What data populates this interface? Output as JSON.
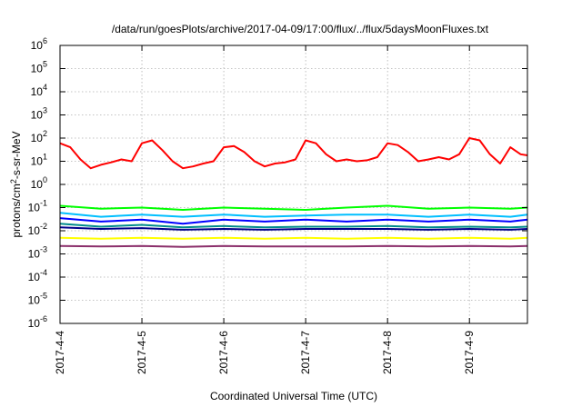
{
  "chart_data": {
    "type": "line",
    "title": "/data/run/goesPlots/archive/2017-04-09/17:00/flux/../flux/5daysMoonFluxes.txt",
    "xlabel": "Coordinated Universal Time (UTC)",
    "ylabel": "protons/cm2-s-sr-MeV",
    "ylabel_main": "protons/cm",
    "ylabel_sup": "2",
    "ylabel_rest": "-s-sr-MeV",
    "yscale": "log",
    "ylim_exp": [
      -6,
      6
    ],
    "yticks": [
      {
        "base": "10",
        "exp": "-6"
      },
      {
        "base": "10",
        "exp": "-5"
      },
      {
        "base": "10",
        "exp": "-4"
      },
      {
        "base": "10",
        "exp": "-3"
      },
      {
        "base": "10",
        "exp": "-2"
      },
      {
        "base": "10",
        "exp": "-1"
      },
      {
        "base": "10",
        "exp": "0"
      },
      {
        "base": "10",
        "exp": "1"
      },
      {
        "base": "10",
        "exp": "2"
      },
      {
        "base": "10",
        "exp": "3"
      },
      {
        "base": "10",
        "exp": "4"
      },
      {
        "base": "10",
        "exp": "5"
      },
      {
        "base": "10",
        "exp": "6"
      }
    ],
    "xlim": [
      "2017-04-04T00:00",
      "2017-04-09T17:00"
    ],
    "xticks": [
      {
        "label": "2017-4-4",
        "date": "2017-04-04T00:00"
      },
      {
        "label": "2017-4-5",
        "date": "2017-04-05T00:00"
      },
      {
        "label": "2017-4-6",
        "date": "2017-04-06T00:00"
      },
      {
        "label": "2017-4-7",
        "date": "2017-04-07T00:00"
      },
      {
        "label": "2017-4-8",
        "date": "2017-04-08T00:00"
      },
      {
        "label": "2017-4-9",
        "date": "2017-04-09T00:00"
      }
    ],
    "grid": true,
    "legend": "none",
    "series": [
      {
        "color": "#ff0000",
        "points": [
          [
            "2017-04-04T00:00",
            60
          ],
          [
            "2017-04-04T03:00",
            40
          ],
          [
            "2017-04-04T06:00",
            12
          ],
          [
            "2017-04-04T09:00",
            5
          ],
          [
            "2017-04-04T12:00",
            7
          ],
          [
            "2017-04-04T15:00",
            9
          ],
          [
            "2017-04-04T18:00",
            12
          ],
          [
            "2017-04-04T21:00",
            10
          ],
          [
            "2017-04-05T00:00",
            60
          ],
          [
            "2017-04-05T03:00",
            80
          ],
          [
            "2017-04-05T06:00",
            30
          ],
          [
            "2017-04-05T09:00",
            10
          ],
          [
            "2017-04-05T12:00",
            5
          ],
          [
            "2017-04-05T15:00",
            6
          ],
          [
            "2017-04-05T18:00",
            8
          ],
          [
            "2017-04-05T21:00",
            10
          ],
          [
            "2017-04-06T00:00",
            40
          ],
          [
            "2017-04-06T03:00",
            45
          ],
          [
            "2017-04-06T06:00",
            25
          ],
          [
            "2017-04-06T09:00",
            10
          ],
          [
            "2017-04-06T12:00",
            6
          ],
          [
            "2017-04-06T15:00",
            8
          ],
          [
            "2017-04-06T18:00",
            9
          ],
          [
            "2017-04-06T21:00",
            12
          ],
          [
            "2017-04-07T00:00",
            80
          ],
          [
            "2017-04-07T03:00",
            60
          ],
          [
            "2017-04-07T06:00",
            20
          ],
          [
            "2017-04-07T09:00",
            10
          ],
          [
            "2017-04-07T12:00",
            12
          ],
          [
            "2017-04-07T15:00",
            10
          ],
          [
            "2017-04-07T18:00",
            11
          ],
          [
            "2017-04-07T21:00",
            15
          ],
          [
            "2017-04-08T00:00",
            60
          ],
          [
            "2017-04-08T03:00",
            50
          ],
          [
            "2017-04-08T06:00",
            25
          ],
          [
            "2017-04-08T09:00",
            10
          ],
          [
            "2017-04-08T12:00",
            12
          ],
          [
            "2017-04-08T15:00",
            15
          ],
          [
            "2017-04-08T18:00",
            12
          ],
          [
            "2017-04-08T21:00",
            20
          ],
          [
            "2017-04-09T00:00",
            100
          ],
          [
            "2017-04-09T03:00",
            80
          ],
          [
            "2017-04-09T06:00",
            20
          ],
          [
            "2017-04-09T09:00",
            8
          ],
          [
            "2017-04-09T12:00",
            40
          ],
          [
            "2017-04-09T15:00",
            20
          ],
          [
            "2017-04-09T17:00",
            18
          ]
        ]
      },
      {
        "color": "#00ff00",
        "points": [
          [
            "2017-04-04T00:00",
            0.12
          ],
          [
            "2017-04-04T12:00",
            0.09
          ],
          [
            "2017-04-05T00:00",
            0.1
          ],
          [
            "2017-04-05T12:00",
            0.08
          ],
          [
            "2017-04-06T00:00",
            0.1
          ],
          [
            "2017-04-06T12:00",
            0.09
          ],
          [
            "2017-04-07T00:00",
            0.08
          ],
          [
            "2017-04-07T12:00",
            0.1
          ],
          [
            "2017-04-08T00:00",
            0.12
          ],
          [
            "2017-04-08T12:00",
            0.09
          ],
          [
            "2017-04-09T00:00",
            0.1
          ],
          [
            "2017-04-09T12:00",
            0.09
          ],
          [
            "2017-04-09T17:00",
            0.1
          ]
        ]
      },
      {
        "color": "#00bfff",
        "points": [
          [
            "2017-04-04T00:00",
            0.06
          ],
          [
            "2017-04-04T12:00",
            0.04
          ],
          [
            "2017-04-05T00:00",
            0.05
          ],
          [
            "2017-04-05T12:00",
            0.04
          ],
          [
            "2017-04-06T00:00",
            0.05
          ],
          [
            "2017-04-06T12:00",
            0.04
          ],
          [
            "2017-04-07T00:00",
            0.045
          ],
          [
            "2017-04-07T12:00",
            0.05
          ],
          [
            "2017-04-08T00:00",
            0.05
          ],
          [
            "2017-04-08T12:00",
            0.04
          ],
          [
            "2017-04-09T00:00",
            0.05
          ],
          [
            "2017-04-09T12:00",
            0.04
          ],
          [
            "2017-04-09T17:00",
            0.05
          ]
        ]
      },
      {
        "color": "#0000ff",
        "points": [
          [
            "2017-04-04T00:00",
            0.035
          ],
          [
            "2017-04-04T12:00",
            0.025
          ],
          [
            "2017-04-05T00:00",
            0.03
          ],
          [
            "2017-04-05T12:00",
            0.02
          ],
          [
            "2017-04-06T00:00",
            0.03
          ],
          [
            "2017-04-06T12:00",
            0.025
          ],
          [
            "2017-04-07T00:00",
            0.03
          ],
          [
            "2017-04-07T12:00",
            0.025
          ],
          [
            "2017-04-08T00:00",
            0.03
          ],
          [
            "2017-04-08T12:00",
            0.025
          ],
          [
            "2017-04-09T00:00",
            0.03
          ],
          [
            "2017-04-09T12:00",
            0.025
          ],
          [
            "2017-04-09T17:00",
            0.03
          ]
        ]
      },
      {
        "color": "#008b8b",
        "points": [
          [
            "2017-04-04T00:00",
            0.02
          ],
          [
            "2017-04-04T12:00",
            0.015
          ],
          [
            "2017-04-05T00:00",
            0.018
          ],
          [
            "2017-04-05T12:00",
            0.014
          ],
          [
            "2017-04-06T00:00",
            0.016
          ],
          [
            "2017-04-06T12:00",
            0.014
          ],
          [
            "2017-04-07T00:00",
            0.015
          ],
          [
            "2017-04-07T12:00",
            0.015
          ],
          [
            "2017-04-08T00:00",
            0.016
          ],
          [
            "2017-04-08T12:00",
            0.014
          ],
          [
            "2017-04-09T00:00",
            0.015
          ],
          [
            "2017-04-09T12:00",
            0.014
          ],
          [
            "2017-04-09T17:00",
            0.015
          ]
        ]
      },
      {
        "color": "#00008b",
        "points": [
          [
            "2017-04-04T00:00",
            0.014
          ],
          [
            "2017-04-04T12:00",
            0.012
          ],
          [
            "2017-04-05T00:00",
            0.013
          ],
          [
            "2017-04-05T12:00",
            0.011
          ],
          [
            "2017-04-06T00:00",
            0.012
          ],
          [
            "2017-04-06T12:00",
            0.011
          ],
          [
            "2017-04-07T00:00",
            0.012
          ],
          [
            "2017-04-07T12:00",
            0.012
          ],
          [
            "2017-04-08T00:00",
            0.012
          ],
          [
            "2017-04-08T12:00",
            0.011
          ],
          [
            "2017-04-09T00:00",
            0.012
          ],
          [
            "2017-04-09T12:00",
            0.011
          ],
          [
            "2017-04-09T17:00",
            0.012
          ]
        ]
      },
      {
        "color": "#ffff00",
        "points": [
          [
            "2017-04-04T00:00",
            0.005
          ],
          [
            "2017-04-04T12:00",
            0.0045
          ],
          [
            "2017-04-05T00:00",
            0.005
          ],
          [
            "2017-04-05T12:00",
            0.0045
          ],
          [
            "2017-04-06T00:00",
            0.005
          ],
          [
            "2017-04-06T12:00",
            0.0045
          ],
          [
            "2017-04-07T00:00",
            0.005
          ],
          [
            "2017-04-07T12:00",
            0.0045
          ],
          [
            "2017-04-08T00:00",
            0.005
          ],
          [
            "2017-04-08T12:00",
            0.0045
          ],
          [
            "2017-04-09T00:00",
            0.005
          ],
          [
            "2017-04-09T12:00",
            0.0045
          ],
          [
            "2017-04-09T17:00",
            0.005
          ]
        ]
      },
      {
        "color": "#8b2f6b",
        "points": [
          [
            "2017-04-04T00:00",
            0.0022
          ],
          [
            "2017-04-04T12:00",
            0.0021
          ],
          [
            "2017-04-05T00:00",
            0.0022
          ],
          [
            "2017-04-05T12:00",
            0.002
          ],
          [
            "2017-04-06T00:00",
            0.0022
          ],
          [
            "2017-04-06T12:00",
            0.0021
          ],
          [
            "2017-04-07T00:00",
            0.0021
          ],
          [
            "2017-04-07T12:00",
            0.0021
          ],
          [
            "2017-04-08T00:00",
            0.0022
          ],
          [
            "2017-04-08T12:00",
            0.0021
          ],
          [
            "2017-04-09T00:00",
            0.0022
          ],
          [
            "2017-04-09T12:00",
            0.0021
          ],
          [
            "2017-04-09T17:00",
            0.0022
          ]
        ]
      }
    ]
  }
}
